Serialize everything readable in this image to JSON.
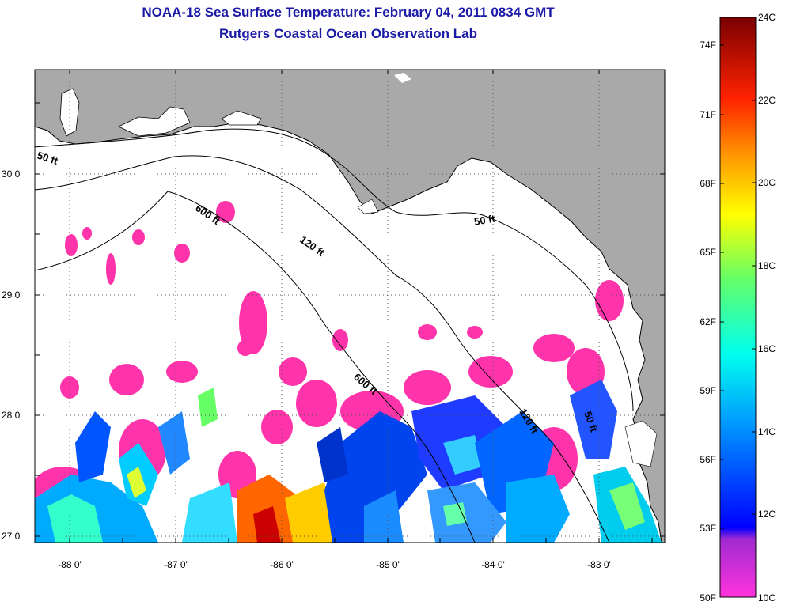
{
  "title": "NOAA-18 Sea Surface Temperature:  February 04, 2011 0834 GMT",
  "subtitle": "Rutgers Coastal Ocean Observation Lab",
  "lat_labels": [
    "30 0'",
    "29 0'",
    "28 0'",
    "27 0'"
  ],
  "lon_labels": [
    "-88 0'",
    "-87 0'",
    "-86 0'",
    "-85 0'",
    "-84 0'",
    "-83 0'"
  ],
  "contour_labels": [
    "50 ft",
    "600 ft",
    "120 ft",
    "50 ft",
    "600 ft",
    "120 ft",
    "50 ft"
  ],
  "colorbar": {
    "fahrenheit": [
      "74F",
      "71F",
      "68F",
      "65F",
      "62F",
      "59F",
      "56F",
      "53F",
      "50F"
    ],
    "celsius": [
      "24C",
      "22C",
      "20C",
      "18C",
      "16C",
      "14C",
      "12C",
      "10C"
    ]
  },
  "colors": {
    "land": "#a9a9a9",
    "ocean_nodata": "#ffffff",
    "cold_patch": "#ff33aa",
    "title": "#1a1aa6"
  }
}
